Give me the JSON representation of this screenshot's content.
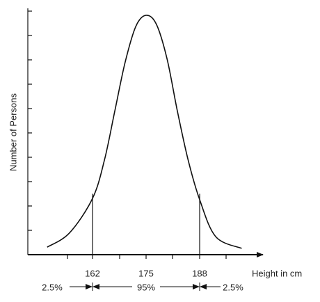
{
  "chart_data": {
    "type": "line",
    "x_label": "Height in cm",
    "y_label": "Number of Persons",
    "x": [
      151.0,
      156.4,
      162.0,
      164.9,
      167.4,
      169.9,
      172.5,
      175.0,
      177.5,
      180.1,
      182.6,
      185.2,
      188.0,
      191.9,
      198.2
    ],
    "values": [
      0.31,
      0.89,
      2.31,
      3.89,
      5.89,
      7.89,
      9.37,
      9.83,
      9.46,
      8.03,
      5.89,
      3.89,
      2.26,
      0.74,
      0.26
    ],
    "color": "#111111",
    "xlim": [
      146.3,
      203.7
    ],
    "ylim": [
      0,
      10
    ],
    "xticks": [
      162,
      175,
      188
    ],
    "annotations": [
      "2.5%",
      "95%",
      "2.5%"
    ]
  }
}
